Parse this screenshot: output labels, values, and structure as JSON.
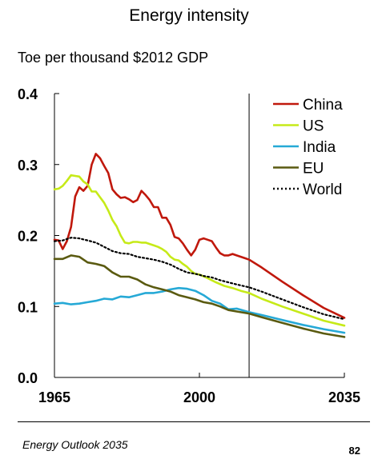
{
  "chart_data": {
    "type": "line",
    "title": "Energy intensity",
    "subtitle": "Toe per thousand $2012 GDP",
    "xlabel": "",
    "ylabel": "",
    "xlim": [
      1965,
      2035
    ],
    "ylim": [
      0,
      0.4
    ],
    "x_ticks": [
      "1965",
      "2000",
      "2035"
    ],
    "y_ticks": [
      "0.0",
      "0.1",
      "0.2",
      "0.3",
      "0.4"
    ],
    "grid": false,
    "legend_position": "top-right",
    "vertical_marker_x": 2012,
    "series": [
      {
        "name": "China",
        "color": "#c0180c",
        "style": "solid",
        "x": [
          1965,
          1966,
          1967,
          1968,
          1969,
          1970,
          1971,
          1972,
          1973,
          1974,
          1975,
          1976,
          1977,
          1978,
          1979,
          1980,
          1981,
          1982,
          1983,
          1984,
          1985,
          1986,
          1987,
          1988,
          1989,
          1990,
          1991,
          1992,
          1993,
          1994,
          1995,
          1996,
          1997,
          1998,
          1999,
          2000,
          2001,
          2002,
          2003,
          2004,
          2005,
          2006,
          2007,
          2008,
          2009,
          2010,
          2011,
          2012,
          2015,
          2020,
          2025,
          2030,
          2035
        ],
        "values": [
          0.194,
          0.193,
          0.181,
          0.192,
          0.212,
          0.255,
          0.268,
          0.263,
          0.27,
          0.3,
          0.315,
          0.309,
          0.298,
          0.288,
          0.265,
          0.258,
          0.253,
          0.254,
          0.251,
          0.247,
          0.25,
          0.263,
          0.257,
          0.25,
          0.24,
          0.24,
          0.225,
          0.225,
          0.215,
          0.198,
          0.196,
          0.189,
          0.18,
          0.172,
          0.18,
          0.194,
          0.196,
          0.194,
          0.192,
          0.183,
          0.175,
          0.172,
          0.172,
          0.174,
          0.172,
          0.17,
          0.168,
          0.166,
          0.155,
          0.135,
          0.116,
          0.098,
          0.084
        ]
      },
      {
        "name": "US",
        "color": "#c6ea18",
        "style": "solid",
        "x": [
          1965,
          1966,
          1967,
          1968,
          1969,
          1970,
          1971,
          1972,
          1973,
          1974,
          1975,
          1976,
          1977,
          1978,
          1979,
          1980,
          1981,
          1982,
          1983,
          1984,
          1985,
          1986,
          1987,
          1988,
          1989,
          1990,
          1991,
          1992,
          1993,
          1994,
          1995,
          1996,
          1997,
          1998,
          1999,
          2000,
          2002,
          2004,
          2006,
          2008,
          2010,
          2012,
          2015,
          2020,
          2025,
          2030,
          2035
        ],
        "values": [
          0.265,
          0.266,
          0.27,
          0.277,
          0.285,
          0.284,
          0.283,
          0.276,
          0.272,
          0.262,
          0.262,
          0.254,
          0.246,
          0.235,
          0.222,
          0.213,
          0.2,
          0.19,
          0.189,
          0.191,
          0.191,
          0.19,
          0.19,
          0.188,
          0.186,
          0.184,
          0.181,
          0.177,
          0.17,
          0.166,
          0.165,
          0.16,
          0.156,
          0.15,
          0.146,
          0.145,
          0.14,
          0.134,
          0.129,
          0.126,
          0.122,
          0.119,
          0.111,
          0.1,
          0.09,
          0.08,
          0.073
        ]
      },
      {
        "name": "India",
        "color": "#26a9d6",
        "style": "solid",
        "x": [
          1965,
          1967,
          1969,
          1971,
          1973,
          1975,
          1977,
          1979,
          1981,
          1983,
          1985,
          1987,
          1989,
          1991,
          1993,
          1995,
          1997,
          1999,
          2001,
          2003,
          2005,
          2007,
          2009,
          2012,
          2015,
          2020,
          2025,
          2030,
          2035
        ],
        "values": [
          0.104,
          0.105,
          0.103,
          0.104,
          0.106,
          0.108,
          0.111,
          0.11,
          0.114,
          0.113,
          0.116,
          0.119,
          0.119,
          0.121,
          0.124,
          0.126,
          0.125,
          0.122,
          0.116,
          0.108,
          0.104,
          0.096,
          0.097,
          0.092,
          0.088,
          0.081,
          0.074,
          0.068,
          0.063
        ]
      },
      {
        "name": "EU",
        "color": "#5a5a10",
        "style": "solid",
        "x": [
          1965,
          1967,
          1969,
          1971,
          1973,
          1975,
          1977,
          1979,
          1981,
          1983,
          1985,
          1987,
          1989,
          1991,
          1993,
          1995,
          1997,
          1999,
          2001,
          2003,
          2005,
          2007,
          2009,
          2012,
          2015,
          2020,
          2025,
          2030,
          2035
        ],
        "values": [
          0.167,
          0.167,
          0.172,
          0.17,
          0.162,
          0.16,
          0.157,
          0.148,
          0.142,
          0.142,
          0.138,
          0.131,
          0.127,
          0.124,
          0.121,
          0.116,
          0.113,
          0.11,
          0.106,
          0.104,
          0.1,
          0.095,
          0.093,
          0.09,
          0.085,
          0.077,
          0.069,
          0.062,
          0.057
        ]
      },
      {
        "name": "World",
        "color": "#000000",
        "style": "dotted",
        "x": [
          1965,
          1967,
          1969,
          1971,
          1973,
          1975,
          1977,
          1979,
          1981,
          1983,
          1985,
          1987,
          1989,
          1991,
          1993,
          1995,
          1997,
          1999,
          2001,
          2003,
          2005,
          2007,
          2009,
          2012,
          2015,
          2020,
          2025,
          2030,
          2035
        ],
        "values": [
          0.192,
          0.193,
          0.197,
          0.196,
          0.193,
          0.19,
          0.184,
          0.178,
          0.175,
          0.174,
          0.17,
          0.168,
          0.166,
          0.163,
          0.159,
          0.153,
          0.148,
          0.146,
          0.143,
          0.141,
          0.137,
          0.134,
          0.131,
          0.127,
          0.121,
          0.11,
          0.099,
          0.089,
          0.082
        ]
      }
    ]
  },
  "footer": {
    "source": "Energy Outlook 2035",
    "page_number": "82"
  }
}
